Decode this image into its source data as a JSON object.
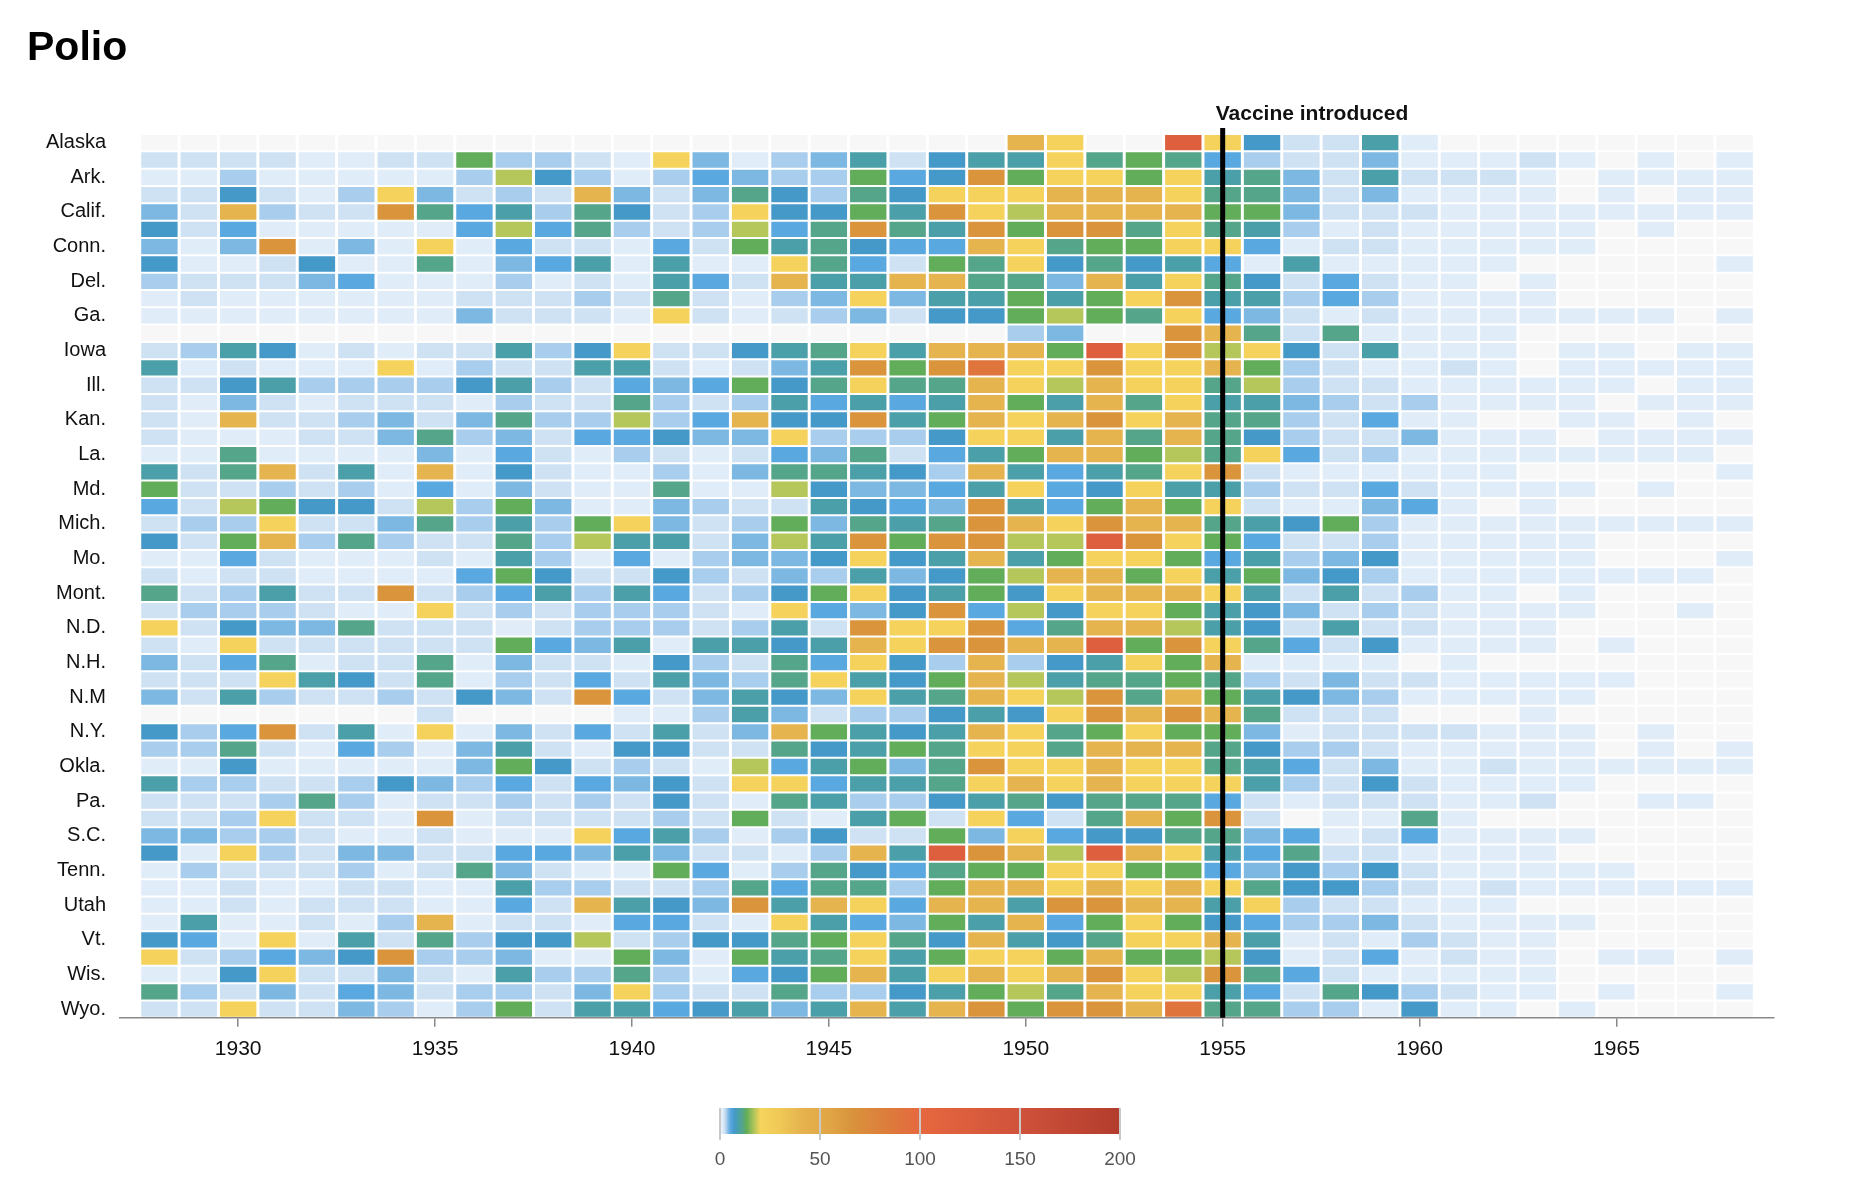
{
  "chart_data": {
    "type": "heatmap",
    "title": "Polio",
    "x": [
      1928,
      1929,
      1930,
      1931,
      1932,
      1933,
      1934,
      1935,
      1936,
      1937,
      1938,
      1939,
      1940,
      1941,
      1942,
      1943,
      1944,
      1945,
      1946,
      1947,
      1948,
      1949,
      1950,
      1951,
      1952,
      1953,
      1954,
      1955,
      1956,
      1957,
      1958,
      1959,
      1960,
      1961,
      1962,
      1963,
      1964,
      1965,
      1966,
      1967,
      1968
    ],
    "xlim": [
      1927,
      1969
    ],
    "xticks": [
      1930,
      1935,
      1940,
      1945,
      1950,
      1955,
      1960,
      1965
    ],
    "y_categories": [
      "Alaska",
      null,
      "Ark.",
      null,
      "Calif.",
      null,
      "Conn.",
      null,
      "Del.",
      null,
      "Ga.",
      null,
      "Iowa",
      null,
      "Ill.",
      null,
      "Kan.",
      null,
      "La.",
      null,
      "Md.",
      null,
      "Mich.",
      null,
      "Mo.",
      null,
      "Mont.",
      null,
      "N.D.",
      null,
      "N.H.",
      null,
      "N.M",
      null,
      "N.Y.",
      null,
      "Okla.",
      null,
      "Pa.",
      null,
      "S.C.",
      null,
      "Tenn.",
      null,
      "Utah",
      null,
      "Vt.",
      null,
      "Wis.",
      null,
      "Wyo."
    ],
    "cells": [
      [
        null,
        null,
        null,
        null,
        null,
        null,
        null,
        null,
        null,
        null,
        null,
        null,
        null,
        null,
        null,
        null,
        null,
        null,
        null,
        null,
        null,
        null,
        40,
        22,
        null,
        null,
        120,
        22,
        7,
        2,
        2,
        9,
        1,
        null,
        null,
        null,
        null,
        null,
        null,
        null,
        null
      ],
      [
        2,
        2,
        2,
        2,
        1,
        1,
        2,
        2,
        13,
        3,
        3,
        2,
        1,
        22,
        4,
        1,
        3,
        4,
        9,
        2,
        7,
        9,
        9,
        22,
        11,
        13,
        11,
        5,
        3,
        2,
        2,
        4,
        1,
        1,
        1,
        2,
        1,
        null,
        1,
        null,
        1
      ],
      [
        1,
        1,
        3,
        1,
        1,
        1,
        1,
        1,
        3,
        17,
        7,
        3,
        1,
        3,
        5,
        4,
        3,
        3,
        13,
        5,
        7,
        65,
        13,
        22,
        22,
        13,
        22,
        9,
        11,
        4,
        2,
        9,
        2,
        2,
        2,
        1,
        null,
        1,
        1,
        1,
        1
      ],
      [
        2,
        2,
        7,
        2,
        1,
        3,
        22,
        4,
        2,
        3,
        2,
        40,
        4,
        2,
        4,
        11,
        7,
        3,
        11,
        7,
        22,
        22,
        22,
        40,
        40,
        40,
        22,
        11,
        11,
        4,
        2,
        4,
        1,
        1,
        1,
        1,
        null,
        1,
        null,
        1,
        1
      ],
      [
        4,
        2,
        40,
        3,
        2,
        2,
        65,
        11,
        5,
        9,
        3,
        11,
        7,
        2,
        3,
        22,
        7,
        7,
        13,
        9,
        65,
        22,
        17,
        40,
        40,
        40,
        40,
        13,
        13,
        4,
        2,
        2,
        2,
        1,
        1,
        1,
        1,
        1,
        1,
        1,
        1
      ],
      [
        7,
        2,
        5,
        1,
        1,
        1,
        1,
        1,
        5,
        17,
        5,
        11,
        3,
        2,
        3,
        17,
        5,
        11,
        65,
        11,
        9,
        65,
        13,
        65,
        65,
        11,
        22,
        11,
        9,
        3,
        1,
        2,
        1,
        1,
        1,
        1,
        1,
        null,
        1,
        null,
        null
      ],
      [
        4,
        1,
        4,
        65,
        1,
        4,
        1,
        22,
        1,
        5,
        2,
        2,
        1,
        5,
        2,
        13,
        9,
        11,
        7,
        5,
        5,
        40,
        22,
        11,
        13,
        13,
        22,
        22,
        5,
        1,
        2,
        2,
        1,
        1,
        1,
        1,
        1,
        null,
        null,
        null,
        null
      ],
      [
        7,
        1,
        1,
        2,
        7,
        1,
        1,
        11,
        1,
        4,
        5,
        9,
        1,
        9,
        1,
        1,
        22,
        11,
        5,
        2,
        13,
        11,
        22,
        7,
        11,
        7,
        9,
        5,
        1,
        9,
        1,
        1,
        1,
        1,
        1,
        null,
        null,
        null,
        null,
        null,
        1
      ],
      [
        3,
        2,
        2,
        2,
        4,
        5,
        1,
        1,
        1,
        3,
        1,
        2,
        1,
        9,
        5,
        2,
        40,
        9,
        9,
        40,
        40,
        11,
        11,
        4,
        40,
        9,
        22,
        11,
        7,
        2,
        5,
        2,
        1,
        1,
        null,
        1,
        null,
        null,
        null,
        null,
        null
      ],
      [
        1,
        2,
        1,
        1,
        1,
        1,
        1,
        1,
        2,
        2,
        2,
        3,
        2,
        11,
        2,
        1,
        3,
        4,
        22,
        4,
        9,
        9,
        13,
        9,
        13,
        22,
        65,
        9,
        9,
        3,
        5,
        3,
        1,
        1,
        1,
        1,
        null,
        null,
        null,
        null,
        null
      ],
      [
        1,
        1,
        1,
        1,
        1,
        1,
        1,
        1,
        4,
        2,
        2,
        2,
        1,
        22,
        2,
        1,
        2,
        3,
        4,
        2,
        7,
        7,
        13,
        17,
        13,
        11,
        22,
        5,
        4,
        2,
        1,
        2,
        1,
        1,
        1,
        1,
        1,
        1,
        1,
        null,
        1
      ],
      [
        null,
        null,
        null,
        null,
        null,
        null,
        null,
        null,
        null,
        null,
        null,
        null,
        null,
        null,
        null,
        null,
        null,
        null,
        null,
        null,
        null,
        null,
        3,
        4,
        null,
        null,
        65,
        40,
        11,
        2,
        11,
        1,
        1,
        1,
        1,
        null,
        null,
        null,
        null,
        null,
        null
      ],
      [
        2,
        3,
        9,
        7,
        1,
        2,
        1,
        2,
        2,
        9,
        3,
        7,
        22,
        2,
        2,
        7,
        9,
        11,
        22,
        9,
        40,
        40,
        40,
        13,
        120,
        22,
        65,
        17,
        22,
        7,
        2,
        9,
        1,
        1,
        1,
        null,
        1,
        1,
        null,
        1,
        1
      ],
      [
        9,
        1,
        2,
        1,
        1,
        1,
        22,
        1,
        3,
        2,
        2,
        9,
        9,
        2,
        1,
        2,
        4,
        9,
        65,
        13,
        65,
        90,
        22,
        22,
        65,
        22,
        22,
        40,
        13,
        3,
        2,
        1,
        1,
        2,
        1,
        null,
        1,
        1,
        1,
        1,
        1
      ],
      [
        2,
        2,
        7,
        9,
        3,
        3,
        3,
        3,
        7,
        9,
        3,
        2,
        5,
        4,
        5,
        13,
        7,
        11,
        22,
        11,
        11,
        40,
        22,
        17,
        40,
        22,
        22,
        11,
        17,
        3,
        2,
        2,
        1,
        1,
        1,
        1,
        1,
        1,
        null,
        1,
        1
      ],
      [
        2,
        1,
        4,
        2,
        1,
        2,
        2,
        2,
        1,
        3,
        2,
        2,
        11,
        3,
        2,
        3,
        9,
        5,
        9,
        5,
        9,
        40,
        13,
        9,
        40,
        11,
        22,
        9,
        9,
        4,
        3,
        2,
        3,
        1,
        1,
        1,
        1,
        null,
        1,
        1,
        1
      ],
      [
        2,
        1,
        40,
        2,
        2,
        3,
        4,
        2,
        4,
        11,
        3,
        3,
        17,
        3,
        5,
        40,
        7,
        7,
        65,
        9,
        13,
        40,
        22,
        40,
        65,
        22,
        40,
        11,
        11,
        3,
        2,
        5,
        1,
        1,
        null,
        null,
        1,
        1,
        null,
        1,
        null
      ],
      [
        2,
        1,
        1,
        1,
        2,
        2,
        4,
        11,
        3,
        4,
        2,
        5,
        5,
        7,
        4,
        4,
        22,
        3,
        3,
        3,
        7,
        22,
        22,
        9,
        40,
        11,
        40,
        11,
        7,
        3,
        2,
        2,
        4,
        1,
        1,
        1,
        null,
        1,
        1,
        1,
        1
      ],
      [
        1,
        1,
        11,
        1,
        1,
        1,
        1,
        4,
        1,
        5,
        2,
        1,
        3,
        2,
        1,
        2,
        5,
        4,
        11,
        2,
        5,
        9,
        13,
        40,
        40,
        13,
        17,
        11,
        22,
        5,
        2,
        3,
        1,
        1,
        1,
        1,
        1,
        1,
        1,
        1,
        null
      ],
      [
        9,
        2,
        11,
        40,
        2,
        9,
        1,
        40,
        1,
        7,
        2,
        1,
        1,
        3,
        1,
        4,
        11,
        11,
        9,
        7,
        3,
        40,
        9,
        5,
        9,
        11,
        22,
        65,
        2,
        1,
        1,
        1,
        1,
        1,
        1,
        null,
        null,
        null,
        null,
        null,
        1
      ],
      [
        13,
        2,
        2,
        3,
        2,
        3,
        1,
        5,
        1,
        4,
        2,
        1,
        1,
        11,
        1,
        1,
        17,
        7,
        4,
        4,
        5,
        9,
        22,
        5,
        7,
        22,
        9,
        9,
        3,
        2,
        2,
        5,
        2,
        1,
        1,
        1,
        1,
        null,
        1,
        null,
        null
      ],
      [
        5,
        2,
        17,
        13,
        7,
        7,
        2,
        17,
        3,
        13,
        4,
        1,
        1,
        4,
        3,
        2,
        2,
        9,
        7,
        5,
        4,
        65,
        9,
        5,
        13,
        40,
        13,
        22,
        2,
        1,
        1,
        4,
        5,
        1,
        null,
        1,
        null,
        null,
        null,
        null,
        null
      ],
      [
        2,
        3,
        3,
        22,
        2,
        2,
        4,
        11,
        3,
        9,
        3,
        13,
        22,
        4,
        2,
        3,
        13,
        4,
        11,
        9,
        11,
        65,
        40,
        22,
        65,
        40,
        40,
        11,
        9,
        7,
        13,
        3,
        1,
        1,
        1,
        1,
        1,
        1,
        1,
        1,
        1
      ],
      [
        7,
        2,
        13,
        40,
        3,
        11,
        3,
        2,
        2,
        11,
        3,
        17,
        9,
        9,
        2,
        4,
        17,
        9,
        65,
        13,
        65,
        65,
        17,
        17,
        120,
        65,
        22,
        13,
        5,
        2,
        2,
        3,
        1,
        1,
        1,
        1,
        1,
        null,
        null,
        null,
        null
      ],
      [
        1,
        1,
        5,
        2,
        1,
        1,
        1,
        2,
        1,
        9,
        3,
        1,
        5,
        1,
        3,
        4,
        4,
        7,
        22,
        7,
        9,
        40,
        9,
        13,
        22,
        22,
        13,
        5,
        9,
        3,
        4,
        7,
        1,
        1,
        1,
        1,
        1,
        null,
        null,
        null,
        1
      ],
      [
        2,
        1,
        2,
        2,
        1,
        1,
        1,
        1,
        5,
        13,
        7,
        2,
        2,
        7,
        3,
        2,
        4,
        3,
        9,
        4,
        7,
        13,
        17,
        40,
        40,
        13,
        22,
        9,
        13,
        4,
        7,
        3,
        1,
        1,
        1,
        1,
        1,
        1,
        1,
        1,
        null
      ],
      [
        11,
        2,
        3,
        9,
        2,
        2,
        65,
        2,
        3,
        5,
        9,
        3,
        9,
        5,
        2,
        3,
        7,
        13,
        22,
        7,
        9,
        13,
        7,
        22,
        40,
        40,
        40,
        22,
        9,
        2,
        9,
        2,
        3,
        1,
        1,
        null,
        1,
        null,
        null,
        null,
        null
      ],
      [
        2,
        3,
        3,
        3,
        2,
        1,
        1,
        22,
        2,
        3,
        2,
        3,
        3,
        3,
        2,
        1,
        22,
        5,
        4,
        7,
        65,
        5,
        17,
        7,
        22,
        22,
        13,
        9,
        7,
        4,
        2,
        3,
        2,
        1,
        1,
        1,
        1,
        null,
        null,
        1,
        null
      ],
      [
        22,
        2,
        7,
        4,
        4,
        11,
        2,
        2,
        2,
        1,
        2,
        3,
        3,
        3,
        2,
        3,
        9,
        2,
        65,
        22,
        22,
        65,
        5,
        11,
        40,
        40,
        17,
        9,
        7,
        2,
        9,
        2,
        2,
        1,
        1,
        1,
        null,
        null,
        null,
        null,
        null
      ],
      [
        2,
        1,
        22,
        2,
        2,
        2,
        2,
        2,
        2,
        13,
        5,
        4,
        9,
        1,
        9,
        9,
        7,
        9,
        40,
        22,
        65,
        65,
        40,
        40,
        120,
        13,
        65,
        22,
        11,
        5,
        2,
        7,
        1,
        1,
        1,
        1,
        null,
        1,
        null,
        null,
        null
      ],
      [
        4,
        2,
        5,
        11,
        1,
        2,
        2,
        11,
        1,
        4,
        2,
        2,
        1,
        7,
        3,
        2,
        11,
        5,
        22,
        7,
        3,
        40,
        3,
        7,
        9,
        22,
        13,
        40,
        1,
        1,
        1,
        1,
        null,
        1,
        null,
        null,
        null,
        null,
        null,
        null,
        null
      ],
      [
        2,
        2,
        2,
        22,
        9,
        7,
        2,
        11,
        1,
        3,
        2,
        5,
        2,
        9,
        4,
        3,
        11,
        22,
        9,
        7,
        13,
        40,
        17,
        9,
        11,
        11,
        13,
        11,
        3,
        2,
        4,
        2,
        2,
        1,
        1,
        1,
        1,
        1,
        null,
        null,
        null
      ],
      [
        4,
        2,
        9,
        3,
        2,
        2,
        3,
        2,
        7,
        4,
        2,
        65,
        5,
        2,
        4,
        9,
        7,
        4,
        22,
        9,
        11,
        40,
        22,
        17,
        65,
        11,
        40,
        13,
        9,
        7,
        4,
        3,
        1,
        1,
        1,
        1,
        1,
        null,
        null,
        null,
        null
      ],
      [
        null,
        null,
        null,
        null,
        null,
        null,
        null,
        2,
        null,
        null,
        null,
        null,
        1,
        1,
        3,
        9,
        4,
        2,
        3,
        3,
        7,
        9,
        7,
        22,
        65,
        40,
        65,
        40,
        11,
        2,
        2,
        2,
        null,
        null,
        null,
        1,
        null,
        null,
        null,
        null,
        null
      ],
      [
        7,
        3,
        5,
        65,
        2,
        9,
        1,
        22,
        1,
        4,
        2,
        5,
        2,
        9,
        2,
        4,
        40,
        13,
        9,
        7,
        9,
        40,
        22,
        11,
        13,
        22,
        13,
        13,
        4,
        1,
        2,
        2,
        2,
        2,
        1,
        1,
        1,
        null,
        1,
        null,
        null
      ],
      [
        3,
        3,
        11,
        2,
        1,
        5,
        3,
        1,
        4,
        9,
        2,
        1,
        7,
        7,
        2,
        2,
        11,
        7,
        9,
        13,
        11,
        22,
        22,
        11,
        40,
        40,
        40,
        11,
        7,
        3,
        3,
        2,
        1,
        1,
        1,
        1,
        1,
        null,
        1,
        null,
        1
      ],
      [
        1,
        1,
        7,
        1,
        1,
        1,
        1,
        1,
        4,
        13,
        7,
        2,
        3,
        2,
        1,
        17,
        5,
        9,
        13,
        4,
        11,
        65,
        22,
        22,
        40,
        22,
        22,
        11,
        9,
        5,
        2,
        4,
        1,
        1,
        2,
        1,
        1,
        1,
        1,
        1,
        1
      ],
      [
        9,
        3,
        3,
        2,
        2,
        3,
        7,
        4,
        3,
        5,
        2,
        5,
        4,
        7,
        2,
        22,
        22,
        5,
        9,
        9,
        11,
        22,
        40,
        22,
        40,
        22,
        22,
        22,
        9,
        3,
        2,
        7,
        2,
        1,
        1,
        1,
        1,
        null,
        null,
        null,
        null
      ],
      [
        2,
        2,
        2,
        3,
        11,
        3,
        1,
        2,
        2,
        3,
        2,
        3,
        2,
        7,
        2,
        1,
        11,
        9,
        3,
        3,
        7,
        9,
        11,
        7,
        11,
        11,
        11,
        5,
        2,
        1,
        2,
        2,
        2,
        1,
        1,
        2,
        null,
        null,
        1,
        1,
        null
      ],
      [
        2,
        2,
        3,
        22,
        2,
        2,
        1,
        65,
        1,
        2,
        2,
        2,
        2,
        3,
        2,
        13,
        2,
        1,
        9,
        13,
        2,
        22,
        5,
        2,
        11,
        40,
        13,
        65,
        2,
        null,
        1,
        1,
        11,
        1,
        null,
        null,
        null,
        null,
        null,
        null,
        null
      ],
      [
        4,
        4,
        3,
        3,
        2,
        1,
        1,
        2,
        1,
        1,
        1,
        22,
        5,
        9,
        3,
        1,
        3,
        7,
        2,
        2,
        13,
        4,
        22,
        5,
        7,
        7,
        11,
        11,
        4,
        5,
        1,
        2,
        5,
        1,
        1,
        1,
        1,
        null,
        null,
        null,
        null
      ],
      [
        7,
        1,
        22,
        3,
        2,
        4,
        4,
        2,
        2,
        5,
        5,
        4,
        9,
        4,
        2,
        2,
        1,
        3,
        40,
        9,
        120,
        65,
        40,
        17,
        120,
        40,
        22,
        9,
        5,
        11,
        2,
        2,
        1,
        1,
        1,
        1,
        null,
        null,
        null,
        null,
        null
      ],
      [
        1,
        3,
        2,
        2,
        2,
        3,
        1,
        2,
        11,
        4,
        2,
        1,
        1,
        13,
        5,
        1,
        3,
        11,
        7,
        5,
        11,
        13,
        13,
        22,
        22,
        13,
        13,
        5,
        4,
        7,
        3,
        7,
        2,
        1,
        1,
        1,
        1,
        1,
        null,
        null,
        null
      ],
      [
        1,
        1,
        2,
        1,
        1,
        2,
        2,
        1,
        1,
        9,
        3,
        3,
        2,
        2,
        3,
        11,
        5,
        11,
        11,
        3,
        13,
        40,
        40,
        22,
        40,
        22,
        40,
        22,
        11,
        7,
        7,
        3,
        2,
        1,
        2,
        1,
        1,
        1,
        1,
        1,
        1
      ],
      [
        1,
        1,
        2,
        1,
        2,
        2,
        2,
        1,
        1,
        5,
        2,
        40,
        9,
        7,
        4,
        65,
        9,
        40,
        22,
        5,
        40,
        40,
        9,
        65,
        65,
        40,
        40,
        9,
        22,
        3,
        2,
        2,
        1,
        1,
        1,
        null,
        null,
        null,
        null,
        null,
        null
      ],
      [
        1,
        9,
        1,
        1,
        2,
        1,
        3,
        40,
        1,
        2,
        2,
        1,
        5,
        5,
        2,
        1,
        22,
        9,
        5,
        4,
        13,
        9,
        40,
        5,
        13,
        22,
        13,
        7,
        5,
        3,
        3,
        4,
        2,
        1,
        1,
        1,
        1,
        null,
        null,
        null,
        null
      ],
      [
        7,
        5,
        1,
        22,
        1,
        9,
        2,
        11,
        3,
        7,
        7,
        17,
        2,
        3,
        7,
        7,
        11,
        13,
        22,
        11,
        7,
        40,
        9,
        7,
        11,
        22,
        22,
        40,
        9,
        1,
        2,
        1,
        3,
        2,
        1,
        1,
        null,
        null,
        null,
        null,
        null
      ],
      [
        22,
        2,
        3,
        5,
        4,
        7,
        65,
        3,
        3,
        4,
        1,
        1,
        13,
        4,
        1,
        13,
        9,
        11,
        22,
        9,
        13,
        22,
        22,
        13,
        40,
        13,
        13,
        17,
        7,
        1,
        2,
        5,
        1,
        2,
        1,
        1,
        null,
        1,
        1,
        null,
        1
      ],
      [
        1,
        1,
        7,
        22,
        2,
        2,
        4,
        2,
        1,
        9,
        3,
        3,
        11,
        3,
        1,
        5,
        7,
        13,
        40,
        9,
        22,
        40,
        22,
        40,
        65,
        22,
        17,
        65,
        11,
        5,
        2,
        1,
        1,
        1,
        1,
        1,
        null,
        null,
        null,
        null,
        null
      ],
      [
        11,
        3,
        2,
        4,
        2,
        5,
        4,
        2,
        3,
        3,
        2,
        4,
        22,
        3,
        2,
        2,
        11,
        3,
        3,
        7,
        9,
        13,
        17,
        11,
        40,
        22,
        22,
        9,
        5,
        2,
        11,
        7,
        3,
        2,
        1,
        1,
        null,
        1,
        null,
        null,
        1
      ],
      [
        2,
        2,
        22,
        2,
        2,
        4,
        3,
        1,
        3,
        13,
        2,
        9,
        9,
        5,
        7,
        9,
        4,
        9,
        40,
        9,
        40,
        65,
        13,
        65,
        65,
        40,
        90,
        11,
        11,
        3,
        3,
        1,
        7,
        1,
        1,
        null,
        1,
        null,
        null,
        null,
        null
      ]
    ],
    "clim": [
      0,
      200
    ],
    "cticks": [
      0,
      50,
      100,
      150,
      200
    ],
    "ref_lines": [
      {
        "axis": "x",
        "value": 1955,
        "label": "Vaccine introduced",
        "color": "#000000"
      }
    ]
  }
}
